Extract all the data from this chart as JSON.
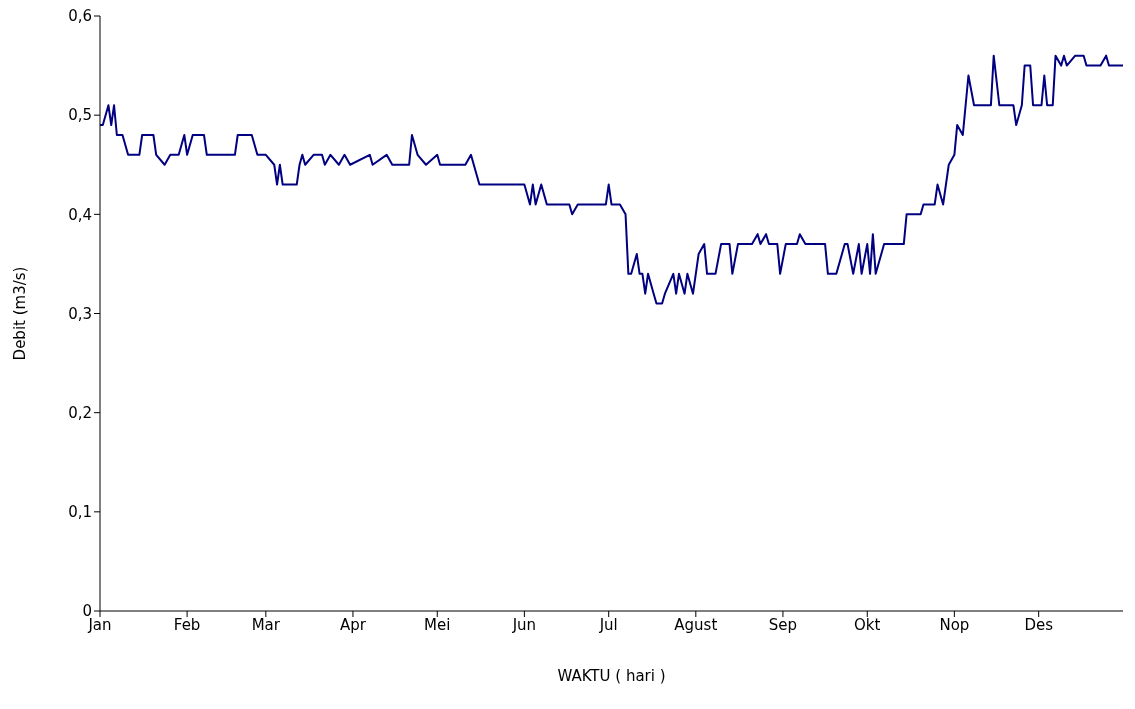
{
  "chart_data": {
    "type": "line",
    "xlabel": "WAKTU ( hari )",
    "ylabel": "Debit (m3/s)",
    "xlim": [
      "--01-01",
      "--12-31"
    ],
    "ylim": [
      0,
      0.6
    ],
    "yticks": [
      0,
      {
        "value": 0.1,
        "label": "0,1"
      },
      {
        "value": 0.2,
        "label": "0,2"
      },
      {
        "value": 0.3,
        "label": "0,3"
      },
      {
        "value": 0.4,
        "label": "0,4"
      },
      {
        "value": 0.5,
        "label": "0,5"
      },
      {
        "value": 0.6,
        "label": "0,6"
      }
    ],
    "xticks": [
      {
        "value": "--01-01",
        "label": "Jan"
      },
      {
        "value": "--02-01",
        "label": "Feb"
      },
      {
        "value": "--03-01",
        "label": "Mar"
      },
      {
        "value": "--04-01",
        "label": "Apr"
      },
      {
        "value": "--05-01",
        "label": "Mei"
      },
      {
        "value": "--06-01",
        "label": "Jun"
      },
      {
        "value": "--07-01",
        "label": "Jul"
      },
      {
        "value": "--08-01",
        "label": "Agust"
      },
      {
        "value": "--09-01",
        "label": "Sep"
      },
      {
        "value": "--10-01",
        "label": "Okt"
      },
      {
        "value": "--11-01",
        "label": "Nop"
      },
      {
        "value": "--12-01",
        "label": "Des"
      }
    ],
    "grid": false,
    "legend": false,
    "marker": "none",
    "line_style": "solid",
    "x": [
      "--01-01",
      "--01-02",
      "--01-04",
      "--01-05",
      "--01-06",
      "--01-07",
      "--01-09",
      "--01-11",
      "--01-15",
      "--01-16",
      "--01-20",
      "--01-21",
      "--01-24",
      "--01-26",
      "--01-29",
      "--01-31",
      "--02-01",
      "--02-03",
      "--02-07",
      "--02-08",
      "--02-18",
      "--02-19",
      "--02-24",
      "--02-26",
      "--03-01",
      "--03-04",
      "--03-05",
      "--03-06",
      "--03-07",
      "--03-12",
      "--03-13",
      "--03-14",
      "--03-15",
      "--03-18",
      "--03-21",
      "--03-22",
      "--03-24",
      "--03-27",
      "--03-29",
      "--03-31",
      "--04-07",
      "--04-08",
      "--04-13",
      "--04-15",
      "--04-21",
      "--04-22",
      "--04-24",
      "--04-27",
      "--05-01",
      "--05-02",
      "--05-11",
      "--05-13",
      "--05-14",
      "--05-16",
      "--06-01",
      "--06-03",
      "--06-04",
      "--06-05",
      "--06-07",
      "--06-09",
      "--06-17",
      "--06-18",
      "--06-20",
      "--06-30",
      "--07-01",
      "--07-02",
      "--07-05",
      "--07-07",
      "--07-08",
      "--07-09",
      "--07-11",
      "--07-12",
      "--07-13",
      "--07-14",
      "--07-15",
      "--07-17",
      "--07-18",
      "--07-20",
      "--07-21",
      "--07-24",
      "--07-25",
      "--07-26",
      "--07-28",
      "--07-29",
      "--07-31",
      "--08-02",
      "--08-04",
      "--08-05",
      "--08-08",
      "--08-10",
      "--08-13",
      "--08-14",
      "--08-16",
      "--08-21",
      "--08-23",
      "--08-24",
      "--08-26",
      "--08-27",
      "--08-30",
      "--08-31",
      "--09-02",
      "--09-06",
      "--09-07",
      "--09-09",
      "--09-16",
      "--09-17",
      "--09-20",
      "--09-23",
      "--09-24",
      "--09-26",
      "--09-28",
      "--09-29",
      "--10-01",
      "--10-02",
      "--10-03",
      "--10-04",
      "--10-07",
      "--10-14",
      "--10-15",
      "--10-20",
      "--10-21",
      "--10-25",
      "--10-26",
      "--10-28",
      "--10-30",
      "--11-01",
      "--11-02",
      "--11-04",
      "--11-06",
      "--11-08",
      "--11-14",
      "--11-15",
      "--11-17",
      "--11-22",
      "--11-23",
      "--11-25",
      "--11-26",
      "--11-28",
      "--11-29",
      "--12-02",
      "--12-03",
      "--12-04",
      "--12-06",
      "--12-07",
      "--12-09",
      "--12-10",
      "--12-11",
      "--12-14",
      "--12-17",
      "--12-18",
      "--12-23",
      "--12-25",
      "--12-26",
      "--12-31"
    ],
    "series": [
      {
        "color": "#000080",
        "values": [
          0.49,
          0.49,
          0.51,
          0.49,
          0.51,
          0.48,
          0.48,
          0.46,
          0.46,
          0.48,
          0.48,
          0.46,
          0.45,
          0.46,
          0.46,
          0.48,
          0.46,
          0.48,
          0.48,
          0.46,
          0.46,
          0.48,
          0.48,
          0.46,
          0.46,
          0.45,
          0.43,
          0.45,
          0.43,
          0.43,
          0.45,
          0.46,
          0.45,
          0.46,
          0.46,
          0.45,
          0.46,
          0.45,
          0.46,
          0.45,
          0.46,
          0.45,
          0.46,
          0.45,
          0.45,
          0.48,
          0.46,
          0.45,
          0.46,
          0.45,
          0.45,
          0.46,
          0.45,
          0.43,
          0.43,
          0.41,
          0.43,
          0.41,
          0.43,
          0.41,
          0.41,
          0.4,
          0.41,
          0.41,
          0.43,
          0.41,
          0.41,
          0.4,
          0.34,
          0.34,
          0.36,
          0.34,
          0.34,
          0.32,
          0.34,
          0.32,
          0.31,
          0.31,
          0.32,
          0.34,
          0.32,
          0.34,
          0.32,
          0.34,
          0.32,
          0.36,
          0.37,
          0.34,
          0.34,
          0.37,
          0.37,
          0.34,
          0.37,
          0.37,
          0.38,
          0.37,
          0.38,
          0.37,
          0.37,
          0.34,
          0.37,
          0.37,
          0.38,
          0.37,
          0.37,
          0.34,
          0.34,
          0.37,
          0.37,
          0.34,
          0.37,
          0.34,
          0.37,
          0.34,
          0.38,
          0.34,
          0.37,
          0.37,
          0.4,
          0.4,
          0.41,
          0.41,
          0.43,
          0.41,
          0.45,
          0.46,
          0.49,
          0.48,
          0.54,
          0.51,
          0.51,
          0.56,
          0.51,
          0.51,
          0.49,
          0.51,
          0.55,
          0.55,
          0.51,
          0.51,
          0.54,
          0.51,
          0.51,
          0.56,
          0.55,
          0.56,
          0.55,
          0.56,
          0.56,
          0.55,
          0.55,
          0.56,
          0.55,
          0.55
        ]
      }
    ]
  }
}
